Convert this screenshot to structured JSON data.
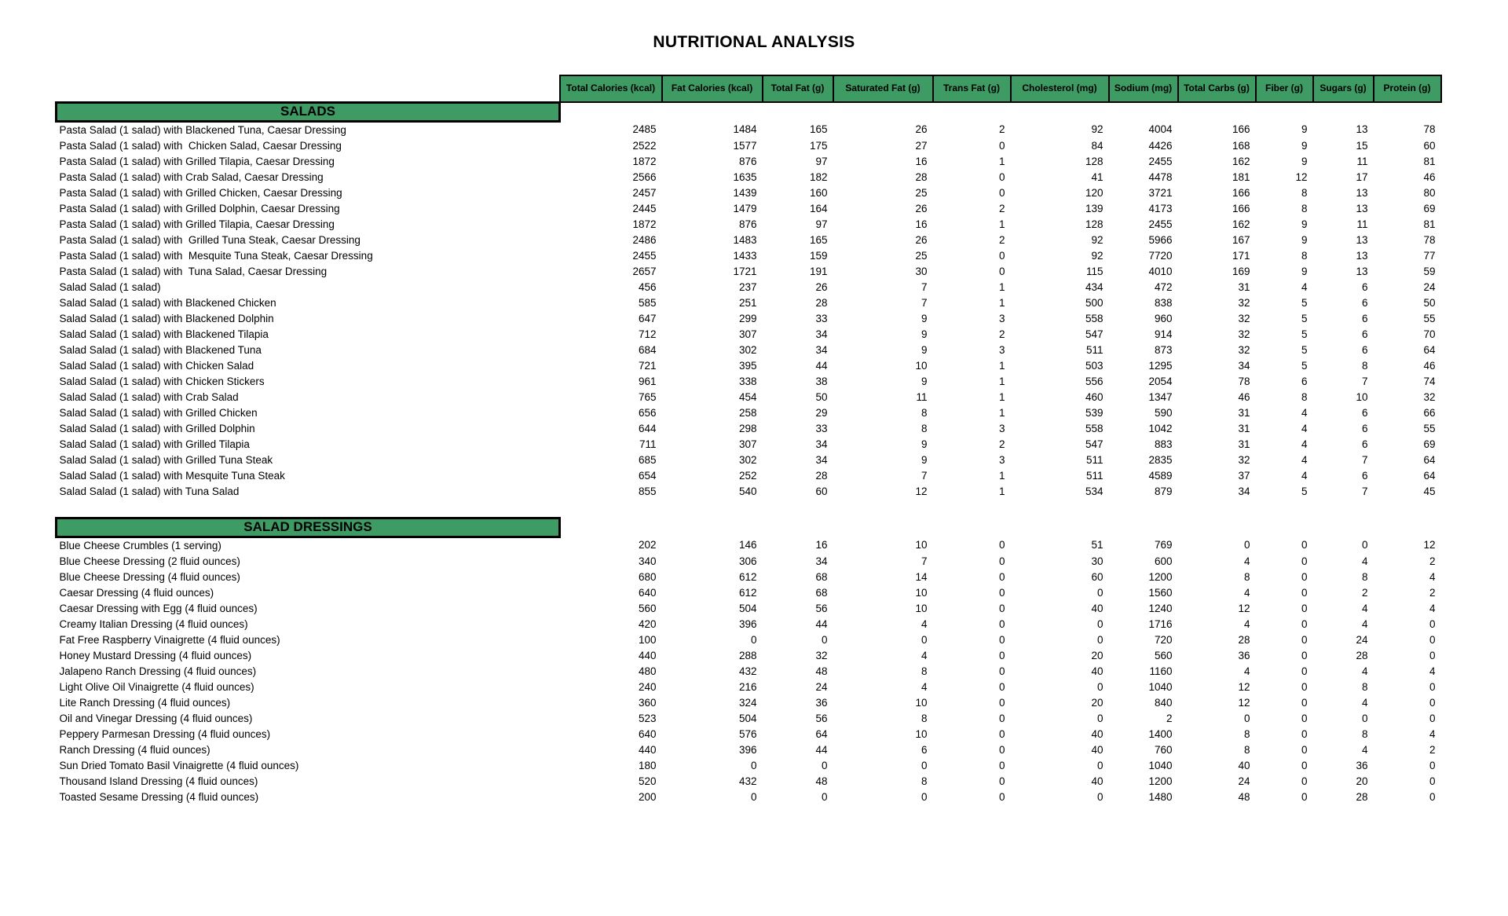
{
  "title": "NUTRITIONAL ANALYSIS",
  "colors": {
    "header_green": "#3d9b63",
    "border": "#000000",
    "text": "#000000",
    "background": "#ffffff"
  },
  "columns": [
    "Total Calories (kcal)",
    "Fat Calories (kcal)",
    "Total Fat (g)",
    "Saturated Fat (g)",
    "Trans Fat (g)",
    "Cholesterol (mg)",
    "Sodium (mg)",
    "Total Carbs (g)",
    "Fiber (g)",
    "Sugars (g)",
    "Protein (g)"
  ],
  "sections": [
    {
      "name": "SALADS",
      "rows": [
        {
          "item": "Pasta Salad (1 salad) with Blackened Tuna, Caesar Dressing",
          "values": [
            2485,
            1484,
            165,
            26,
            2,
            92,
            4004,
            166,
            9,
            13,
            78
          ]
        },
        {
          "item": "Pasta Salad (1 salad) with  Chicken Salad, Caesar Dressing",
          "values": [
            2522,
            1577,
            175,
            27,
            0,
            84,
            4426,
            168,
            9,
            15,
            60
          ]
        },
        {
          "item": "Pasta Salad (1 salad) with Grilled Tilapia, Caesar Dressing",
          "values": [
            1872,
            876,
            97,
            16,
            1,
            128,
            2455,
            162,
            9,
            11,
            81
          ]
        },
        {
          "item": "Pasta Salad (1 salad) with Crab Salad, Caesar Dressing",
          "values": [
            2566,
            1635,
            182,
            28,
            0,
            41,
            4478,
            181,
            12,
            17,
            46
          ]
        },
        {
          "item": "Pasta Salad (1 salad) with Grilled Chicken, Caesar Dressing",
          "values": [
            2457,
            1439,
            160,
            25,
            0,
            120,
            3721,
            166,
            8,
            13,
            80
          ]
        },
        {
          "item": "Pasta Salad (1 salad) with Grilled Dolphin, Caesar Dressing",
          "values": [
            2445,
            1479,
            164,
            26,
            2,
            139,
            4173,
            166,
            8,
            13,
            69
          ]
        },
        {
          "item": "Pasta Salad (1 salad) with Grilled Tilapia, Caesar Dressing",
          "values": [
            1872,
            876,
            97,
            16,
            1,
            128,
            2455,
            162,
            9,
            11,
            81
          ]
        },
        {
          "item": "Pasta Salad (1 salad) with  Grilled Tuna Steak, Caesar Dressing",
          "values": [
            2486,
            1483,
            165,
            26,
            2,
            92,
            5966,
            167,
            9,
            13,
            78
          ]
        },
        {
          "item": "Pasta Salad (1 salad) with  Mesquite Tuna Steak, Caesar Dressing",
          "values": [
            2455,
            1433,
            159,
            25,
            0,
            92,
            7720,
            171,
            8,
            13,
            77
          ]
        },
        {
          "item": "Pasta Salad (1 salad) with  Tuna Salad, Caesar Dressing",
          "values": [
            2657,
            1721,
            191,
            30,
            0,
            115,
            4010,
            169,
            9,
            13,
            59
          ]
        },
        {
          "item": "Salad Salad (1 salad)",
          "values": [
            456,
            237,
            26,
            7,
            1,
            434,
            472,
            31,
            4,
            6,
            24
          ]
        },
        {
          "item": "Salad Salad (1 salad) with Blackened Chicken",
          "values": [
            585,
            251,
            28,
            7,
            1,
            500,
            838,
            32,
            5,
            6,
            50
          ]
        },
        {
          "item": "Salad Salad (1 salad) with Blackened Dolphin",
          "values": [
            647,
            299,
            33,
            9,
            3,
            558,
            960,
            32,
            5,
            6,
            55
          ]
        },
        {
          "item": "Salad Salad (1 salad) with Blackened Tilapia",
          "values": [
            712,
            307,
            34,
            9,
            2,
            547,
            914,
            32,
            5,
            6,
            70
          ]
        },
        {
          "item": "Salad Salad (1 salad) with Blackened Tuna",
          "values": [
            684,
            302,
            34,
            9,
            3,
            511,
            873,
            32,
            5,
            6,
            64
          ]
        },
        {
          "item": "Salad Salad (1 salad) with Chicken Salad",
          "values": [
            721,
            395,
            44,
            10,
            1,
            503,
            1295,
            34,
            5,
            8,
            46
          ]
        },
        {
          "item": "Salad Salad (1 salad) with Chicken Stickers",
          "values": [
            961,
            338,
            38,
            9,
            1,
            556,
            2054,
            78,
            6,
            7,
            74
          ]
        },
        {
          "item": "Salad Salad (1 salad) with Crab Salad",
          "values": [
            765,
            454,
            50,
            11,
            1,
            460,
            1347,
            46,
            8,
            10,
            32
          ]
        },
        {
          "item": "Salad Salad (1 salad) with Grilled Chicken",
          "values": [
            656,
            258,
            29,
            8,
            1,
            539,
            590,
            31,
            4,
            6,
            66
          ]
        },
        {
          "item": "Salad Salad (1 salad) with Grilled Dolphin",
          "values": [
            644,
            298,
            33,
            8,
            3,
            558,
            1042,
            31,
            4,
            6,
            55
          ]
        },
        {
          "item": "Salad Salad (1 salad) with Grilled Tilapia",
          "values": [
            711,
            307,
            34,
            9,
            2,
            547,
            883,
            31,
            4,
            6,
            69
          ]
        },
        {
          "item": "Salad Salad (1 salad) with Grilled Tuna Steak",
          "values": [
            685,
            302,
            34,
            9,
            3,
            511,
            2835,
            32,
            4,
            7,
            64
          ]
        },
        {
          "item": "Salad Salad (1 salad) with Mesquite Tuna Steak",
          "values": [
            654,
            252,
            28,
            7,
            1,
            511,
            4589,
            37,
            4,
            6,
            64
          ]
        },
        {
          "item": "Salad Salad (1 salad) with Tuna Salad",
          "values": [
            855,
            540,
            60,
            12,
            1,
            534,
            879,
            34,
            5,
            7,
            45
          ]
        }
      ]
    },
    {
      "name": "SALAD DRESSINGS",
      "rows": [
        {
          "item": "Blue Cheese Crumbles (1 serving)",
          "values": [
            202,
            146,
            16,
            10,
            0,
            51,
            769,
            0,
            0,
            0,
            12
          ]
        },
        {
          "item": "Blue Cheese Dressing (2 fluid ounces)",
          "values": [
            340,
            306,
            34,
            7,
            0,
            30,
            600,
            4,
            0,
            4,
            2
          ]
        },
        {
          "item": "Blue Cheese Dressing (4 fluid ounces)",
          "values": [
            680,
            612,
            68,
            14,
            0,
            60,
            1200,
            8,
            0,
            8,
            4
          ]
        },
        {
          "item": "Caesar Dressing (4 fluid ounces)",
          "values": [
            640,
            612,
            68,
            10,
            0,
            0,
            1560,
            4,
            0,
            2,
            2
          ]
        },
        {
          "item": "Caesar Dressing with Egg (4 fluid ounces)",
          "values": [
            560,
            504,
            56,
            10,
            0,
            40,
            1240,
            12,
            0,
            4,
            4
          ]
        },
        {
          "item": "Creamy Italian Dressing (4 fluid ounces)",
          "values": [
            420,
            396,
            44,
            4,
            0,
            0,
            1716,
            4,
            0,
            4,
            0
          ]
        },
        {
          "item": "Fat Free Raspberry Vinaigrette (4 fluid ounces)",
          "values": [
            100,
            0,
            0,
            0,
            0,
            0,
            720,
            28,
            0,
            24,
            0
          ]
        },
        {
          "item": "Honey Mustard Dressing (4 fluid ounces)",
          "values": [
            440,
            288,
            32,
            4,
            0,
            20,
            560,
            36,
            0,
            28,
            0
          ]
        },
        {
          "item": "Jalapeno Ranch Dressing (4 fluid ounces)",
          "values": [
            480,
            432,
            48,
            8,
            0,
            40,
            1160,
            4,
            0,
            4,
            4
          ]
        },
        {
          "item": "Light Olive Oil Vinaigrette (4 fluid ounces)",
          "values": [
            240,
            216,
            24,
            4,
            0,
            0,
            1040,
            12,
            0,
            8,
            0
          ]
        },
        {
          "item": "Lite Ranch Dressing (4 fluid ounces)",
          "values": [
            360,
            324,
            36,
            10,
            0,
            20,
            840,
            12,
            0,
            4,
            0
          ]
        },
        {
          "item": "Oil and Vinegar Dressing (4 fluid ounces)",
          "values": [
            523,
            504,
            56,
            8,
            0,
            0,
            2,
            0,
            0,
            0,
            0
          ]
        },
        {
          "item": "Peppery Parmesan Dressing (4 fluid ounces)",
          "values": [
            640,
            576,
            64,
            10,
            0,
            40,
            1400,
            8,
            0,
            8,
            4
          ]
        },
        {
          "item": "Ranch Dressing (4 fluid ounces)",
          "values": [
            440,
            396,
            44,
            6,
            0,
            40,
            760,
            8,
            0,
            4,
            2
          ]
        },
        {
          "item": "Sun Dried Tomato Basil Vinaigrette (4 fluid ounces)",
          "values": [
            180,
            0,
            0,
            0,
            0,
            0,
            1040,
            40,
            0,
            36,
            0
          ]
        },
        {
          "item": "Thousand Island Dressing (4 fluid ounces)",
          "values": [
            520,
            432,
            48,
            8,
            0,
            40,
            1200,
            24,
            0,
            20,
            0
          ]
        },
        {
          "item": "Toasted Sesame Dressing (4 fluid ounces)",
          "values": [
            200,
            0,
            0,
            0,
            0,
            0,
            1480,
            48,
            0,
            28,
            0
          ]
        }
      ]
    }
  ]
}
